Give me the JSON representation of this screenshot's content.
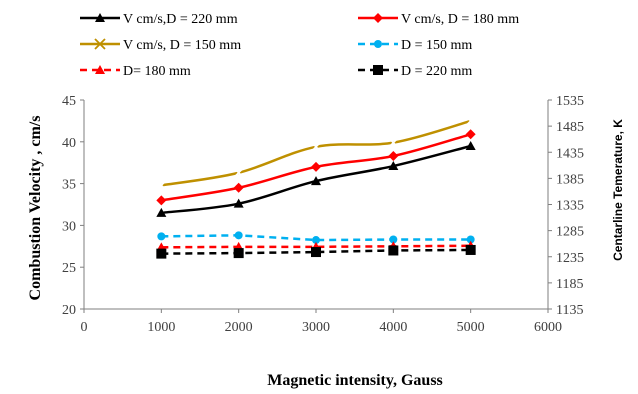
{
  "chart_data": {
    "type": "line",
    "title": "",
    "xlabel": "Magnetic intensity, Gauss",
    "ylabel_left": "Combustion Velocity , cm/s",
    "ylabel_right": "Centarline Temerature, K",
    "xlim": [
      0,
      6000
    ],
    "ylim_left": [
      20,
      45
    ],
    "ylim_right": [
      1135,
      1535
    ],
    "x_ticks": [
      "0",
      "1000",
      "2000",
      "3000",
      "4000",
      "5000",
      "6000"
    ],
    "y_ticks_left": [
      "20",
      "25",
      "30",
      "35",
      "40",
      "45"
    ],
    "y_ticks_right": [
      "1135",
      "1185",
      "1235",
      "1285",
      "1335",
      "1385",
      "1435",
      "1485",
      "1535"
    ],
    "grid": false,
    "legend_placement": "top",
    "x": [
      1000,
      2000,
      3000,
      4000,
      5000
    ],
    "series": [
      {
        "name": "V cm/s,D = 220 mm",
        "axis": "left",
        "color": "#000000",
        "marker": "triangle",
        "dash": "solid",
        "values": [
          31.5,
          32.6,
          35.3,
          37.1,
          39.5
        ]
      },
      {
        "name": "V cm/s, D = 180 mm",
        "axis": "left",
        "color": "#ff0000",
        "marker": "diamond",
        "dash": "solid",
        "values": [
          33.0,
          34.5,
          37.0,
          38.3,
          40.9
        ]
      },
      {
        "name": "V cm/s, D = 150 mm",
        "axis": "left",
        "color": "#bf9000",
        "marker": "x",
        "dash": "solid",
        "values": [
          34.8,
          36.3,
          39.4,
          39.9,
          42.5
        ]
      },
      {
        "name": "D = 150 mm",
        "axis": "right",
        "color": "#00b0f0",
        "marker": "circle",
        "dash": "dashed",
        "values": [
          1274,
          1276,
          1267,
          1268,
          1268
        ]
      },
      {
        "name": "D= 180 mm",
        "axis": "right",
        "color": "#ff0000",
        "marker": "triangle",
        "dash": "dashed",
        "values": [
          1253,
          1254,
          1254,
          1255,
          1256
        ]
      },
      {
        "name": "D = 220 mm",
        "axis": "right",
        "color": "#000000",
        "marker": "square",
        "dash": "dashed",
        "values": [
          1241,
          1242,
          1244,
          1247,
          1248
        ]
      }
    ]
  }
}
